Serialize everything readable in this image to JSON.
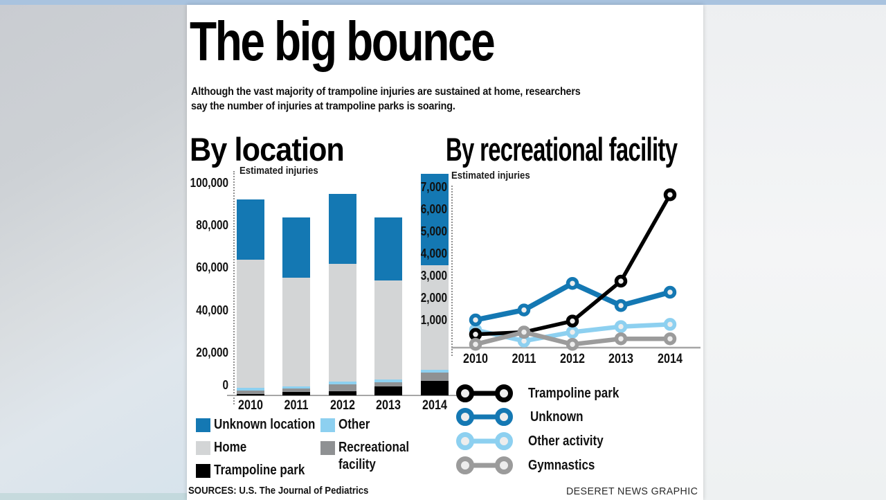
{
  "page": {
    "title": "The big bounce",
    "subtitle_lines": [
      "Although the vast majority of trampoline injuries are sustained at home, researchers",
      "say the number of injuries at trampoline parks is soaring."
    ],
    "source_text": "SOURCES: U.S. The Journal of Pediatrics",
    "credit": "DESERET NEWS GRAPHIC"
  },
  "chart_data": [
    {
      "id": "by-location",
      "type": "bar",
      "stacked": true,
      "title": "By location",
      "ylabel": "Estimated injuries",
      "categories": [
        "2010",
        "2011",
        "2012",
        "2013",
        "2014"
      ],
      "series": [
        {
          "name": "Trampoline park",
          "color": "#000000",
          "values": [
            800,
            1500,
            1900,
            4200,
            7000
          ]
        },
        {
          "name": "Recreational facility",
          "color": "#8f9193",
          "values": [
            1600,
            1700,
            3300,
            2000,
            3900
          ]
        },
        {
          "name": "Other",
          "color": "#8dd0f0",
          "values": [
            1100,
            1100,
            1300,
            1300,
            1300
          ]
        },
        {
          "name": "Home",
          "color": "#d3d5d6",
          "values": [
            60500,
            51200,
            55500,
            46700,
            49300
          ]
        },
        {
          "name": "Unknown location",
          "color": "#1478b3",
          "values": [
            28500,
            28500,
            33000,
            29800,
            43000
          ]
        }
      ],
      "totals": [
        92500,
        84000,
        95000,
        84000,
        104500
      ],
      "ylim": [
        0,
        104900
      ],
      "grid": false,
      "yticks": [
        {
          "v": 0,
          "label": "0"
        },
        {
          "v": 20000,
          "label": "20,000"
        },
        {
          "v": 40000,
          "label": "40,000"
        },
        {
          "v": 60000,
          "label": "60,000"
        },
        {
          "v": 80000,
          "label": "80,000"
        },
        {
          "v": 100000,
          "label": "100,000"
        }
      ]
    },
    {
      "id": "by-recreational-facility",
      "type": "line",
      "title": "By recreational facility",
      "ylabel": "Estimated injuries",
      "x": [
        "2010",
        "2011",
        "2012",
        "2013",
        "2014"
      ],
      "series": [
        {
          "name": "Trampoline park",
          "color": "#000000",
          "values": [
            600,
            700,
            1200,
            3000,
            6900
          ]
        },
        {
          "name": "Unknown",
          "color": "#1478b3",
          "values": [
            1250,
            1700,
            2900,
            1900,
            2500
          ]
        },
        {
          "name": "Other activity",
          "color": "#8dd0f0",
          "values": [
            800,
            300,
            700,
            950,
            1050
          ]
        },
        {
          "name": "Gymnastics",
          "color": "#9b9b9b",
          "values": [
            150,
            700,
            150,
            400,
            400
          ]
        }
      ],
      "ylim": [
        0,
        7300
      ],
      "legend_position": "bottom",
      "yticks": [
        {
          "v": 1000,
          "label": "1,000"
        },
        {
          "v": 2000,
          "label": "2,000"
        },
        {
          "v": 3000,
          "label": "3,000"
        },
        {
          "v": 4000,
          "label": "4,000"
        },
        {
          "v": 5000,
          "label": "5,000"
        },
        {
          "v": 6000,
          "label": "6,000"
        },
        {
          "v": 7000,
          "label": "7,000"
        }
      ]
    }
  ]
}
